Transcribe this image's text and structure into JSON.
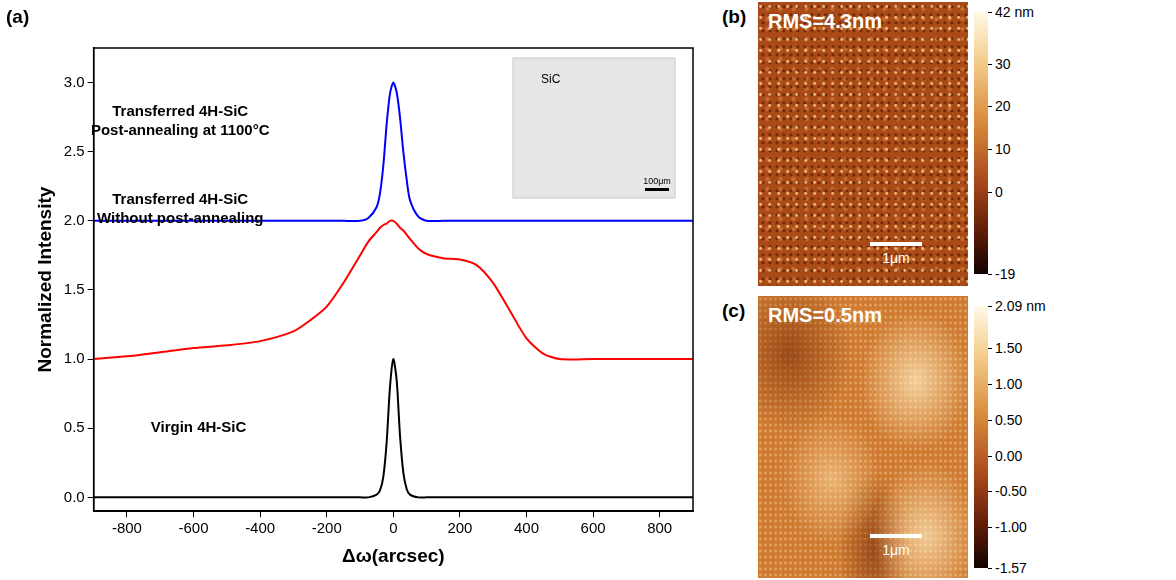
{
  "chart_data": {
    "type": "line",
    "panel": "(a)",
    "x_label": "Δω(arcsec)",
    "y_label": "Normalized Intensity",
    "x": [
      -900,
      -800,
      -700,
      -600,
      -500,
      -400,
      -300,
      -250,
      -200,
      -150,
      -100,
      -75,
      -50,
      -40,
      -30,
      -20,
      -10,
      0,
      10,
      20,
      30,
      40,
      50,
      75,
      100,
      150,
      200,
      250,
      300,
      350,
      400,
      450,
      500,
      600,
      700,
      800,
      900
    ],
    "series": [
      {
        "label": [
          "Transferred 4H-SiC",
          "Post-annealing at 1100°C"
        ],
        "color": "#0000ff",
        "values": [
          2.0,
          2.0,
          2.0,
          2.0,
          2.0,
          2.0,
          2.0,
          2.0,
          2.0,
          2.0,
          2.0,
          2.02,
          2.1,
          2.2,
          2.4,
          2.7,
          2.92,
          3.0,
          2.93,
          2.75,
          2.5,
          2.3,
          2.15,
          2.03,
          2.0,
          2.0,
          2.0,
          2.0,
          2.0,
          2.0,
          2.0,
          2.0,
          2.0,
          2.0,
          2.0,
          2.0,
          2.0
        ]
      },
      {
        "label": [
          "Transferred 4H-SiC",
          "Without post-annealing"
        ],
        "color": "#ff0000",
        "values": [
          1.0,
          1.02,
          1.05,
          1.08,
          1.1,
          1.13,
          1.2,
          1.28,
          1.38,
          1.55,
          1.75,
          1.85,
          1.92,
          1.95,
          1.97,
          1.98,
          2.0,
          2.0,
          1.98,
          1.95,
          1.93,
          1.9,
          1.87,
          1.8,
          1.76,
          1.73,
          1.72,
          1.68,
          1.55,
          1.35,
          1.15,
          1.04,
          1.0,
          1.0,
          1.0,
          1.0,
          1.0
        ]
      },
      {
        "label": [
          "Virgin 4H-SiC"
        ],
        "color": "#000000",
        "values": [
          0,
          0,
          0,
          0,
          0,
          0,
          0,
          0,
          0,
          0,
          0,
          0,
          0.02,
          0.05,
          0.15,
          0.4,
          0.8,
          1.0,
          0.85,
          0.45,
          0.18,
          0.06,
          0.02,
          0,
          0,
          0,
          0,
          0,
          0,
          0,
          0,
          0,
          0,
          0,
          0,
          0,
          0
        ]
      }
    ],
    "xlim": [
      -900,
      900
    ],
    "xticks": [
      -800,
      -600,
      -400,
      -200,
      0,
      200,
      400,
      600,
      800
    ],
    "ylim": [
      -0.1,
      3.25
    ],
    "yticks": [
      {
        "value": 0,
        "label": "0.0"
      },
      {
        "value": 0.5,
        "label": "0.5"
      },
      {
        "value": 1,
        "label": "1.0"
      },
      {
        "value": 1.5,
        "label": "1.5"
      },
      {
        "value": 2,
        "label": "2.0"
      },
      {
        "value": 2.5,
        "label": "2.5"
      },
      {
        "value": 3,
        "label": "3.0"
      }
    ],
    "grid": false,
    "inset": {
      "label": "SiC",
      "scale_bar": "100μm"
    }
  },
  "afm_images": [
    {
      "panel": "(b)",
      "rms": "RMS=4.3nm",
      "scale_bar": "1μm",
      "colorbar": {
        "range": [
          -19,
          42
        ],
        "ticks": [
          {
            "value": 42,
            "label": "42 nm"
          },
          30,
          20,
          10,
          0,
          -19
        ]
      }
    },
    {
      "panel": "(c)",
      "rms": "RMS=0.5nm",
      "scale_bar": "1μm",
      "colorbar": {
        "range": [
          -1.57,
          2.09
        ],
        "ticks": [
          {
            "value": 2.09,
            "label": "2.09 nm"
          },
          {
            "value": 1.5,
            "label": "1.50"
          },
          {
            "value": 1,
            "label": "1.00"
          },
          {
            "value": 0.5,
            "label": "0.50"
          },
          {
            "value": 0,
            "label": "0.00"
          },
          {
            "value": -0.5,
            "label": "-0.50"
          },
          {
            "value": -1,
            "label": "-1.00"
          },
          -1.57
        ]
      }
    }
  ]
}
